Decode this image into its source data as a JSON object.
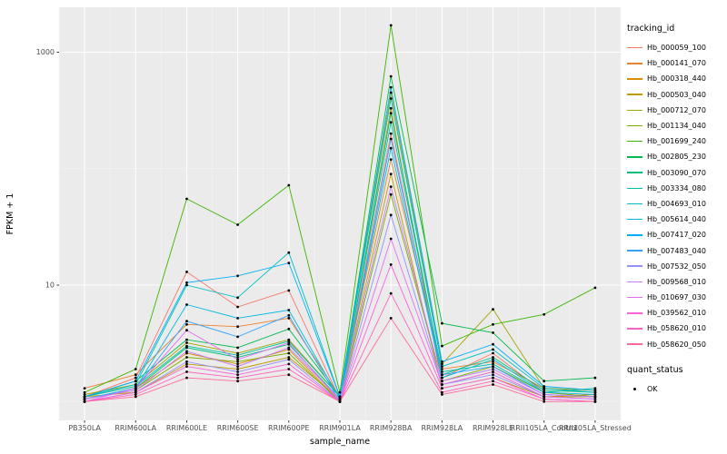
{
  "chart_data": {
    "type": "line",
    "title": "",
    "xlabel": "sample_name",
    "ylabel": "FPKM + 1",
    "y_scale": "log10",
    "y_ticks": [
      10,
      1000
    ],
    "y_minor_ticks": [
      1,
      100
    ],
    "ylim": [
      0.65,
      2400
    ],
    "panel_bg": "#EBEBEB",
    "grid_major_color": "#FFFFFF",
    "grid_minor_color": "#F5F5F5",
    "point_color": "#000000",
    "legend_title": "tracking_id",
    "quant_legend_title": "quant_status",
    "quant_legend_items": [
      {
        "label": "OK",
        "shape": "point",
        "color": "#000000"
      }
    ],
    "categories": [
      "PB350LA",
      "RRIM600LA",
      "RRIM600LE",
      "RRIM600SE",
      "RRIM600PE",
      "RRIM901LA",
      "RRIM928BA",
      "RRIM928LA",
      "RRIM928LE",
      "RRII105LA_Control",
      "RRII105LA_Stressed"
    ],
    "series": [
      {
        "name": "Hb_000059_100",
        "color": "#F8766D",
        "values": [
          1.1,
          1.6,
          13,
          6.5,
          9,
          1.05,
          200,
          1.6,
          2.6,
          1.2,
          1.1
        ]
      },
      {
        "name": "Hb_000141_070",
        "color": "#EA8331",
        "values": [
          1.3,
          1.7,
          4.6,
          4.4,
          5.2,
          1.1,
          120,
          1.9,
          2.2,
          1.3,
          1.2
        ]
      },
      {
        "name": "Hb_000318_440",
        "color": "#D89000",
        "values": [
          1.05,
          1.3,
          2.6,
          2.1,
          2.8,
          1.0,
          330,
          1.4,
          1.8,
          1.1,
          1.15
        ]
      },
      {
        "name": "Hb_000503_040",
        "color": "#C09B00",
        "values": [
          1.1,
          1.2,
          2.1,
          1.9,
          2.4,
          1.05,
          90,
          1.3,
          1.6,
          1.1,
          1.1
        ]
      },
      {
        "name": "Hb_000712_070",
        "color": "#A3A500",
        "values": [
          1.15,
          1.4,
          3.2,
          2.6,
          3.4,
          1.1,
          450,
          2.1,
          6.2,
          1.3,
          1.25
        ]
      },
      {
        "name": "Hb_001134_040",
        "color": "#7CAE00",
        "values": [
          1.05,
          1.25,
          2.4,
          2.2,
          2.6,
          1.0,
          60,
          1.5,
          2.0,
          1.2,
          1.1
        ]
      },
      {
        "name": "Hb_001699_240",
        "color": "#39B600",
        "values": [
          1.2,
          1.9,
          55,
          33,
          72,
          1.2,
          1700,
          3.0,
          4.6,
          5.6,
          9.5
        ]
      },
      {
        "name": "Hb_002805_230",
        "color": "#00BB4E",
        "values": [
          1.1,
          1.5,
          3.4,
          2.9,
          4.2,
          1.1,
          620,
          4.7,
          3.9,
          1.5,
          1.6
        ]
      },
      {
        "name": "Hb_003090_070",
        "color": "#00BF7D",
        "values": [
          1.05,
          1.3,
          2.9,
          2.4,
          3.1,
          1.05,
          300,
          1.7,
          2.4,
          1.25,
          1.2
        ]
      },
      {
        "name": "Hb_003334_080",
        "color": "#00C1A3",
        "values": [
          1.1,
          1.35,
          3.0,
          2.5,
          3.3,
          1.1,
          250,
          1.8,
          2.1,
          1.2,
          1.3
        ]
      },
      {
        "name": "Hb_004693_010",
        "color": "#00BFC4",
        "values": [
          1.1,
          1.4,
          10,
          7.8,
          19,
          1.1,
          400,
          2.0,
          2.8,
          1.3,
          1.2
        ]
      },
      {
        "name": "Hb_005614_040",
        "color": "#00BAE0",
        "values": [
          1.05,
          1.3,
          6.8,
          5.2,
          6.1,
          1.05,
          150,
          1.6,
          2.3,
          1.2,
          1.15
        ]
      },
      {
        "name": "Hb_007417_020",
        "color": "#00B0F6",
        "values": [
          1.1,
          1.5,
          10.5,
          12,
          15.5,
          1.1,
          500,
          2.2,
          3.1,
          1.35,
          1.25
        ]
      },
      {
        "name": "Hb_007483_040",
        "color": "#35A2FF",
        "values": [
          1.05,
          1.3,
          4.9,
          3.6,
          5.5,
          1.0,
          180,
          1.7,
          2.0,
          1.15,
          1.1
        ]
      },
      {
        "name": "Hb_007532_050",
        "color": "#9590FF",
        "values": [
          1.0,
          1.2,
          2.2,
          1.8,
          2.3,
          1.0,
          40,
          1.4,
          1.7,
          1.1,
          1.05
        ]
      },
      {
        "name": "Hb_009568_010",
        "color": "#C77CFF",
        "values": [
          1.05,
          1.25,
          2.7,
          2.0,
          2.9,
          1.05,
          70,
          1.5,
          1.9,
          1.15,
          1.1
        ]
      },
      {
        "name": "Hb_010697_030",
        "color": "#E76BF3",
        "values": [
          1.0,
          1.3,
          4.1,
          2.3,
          3.2,
          1.0,
          25,
          1.4,
          1.8,
          1.1,
          1.05
        ]
      },
      {
        "name": "Hb_039562_010",
        "color": "#FA62DB",
        "values": [
          1.0,
          1.2,
          2.0,
          1.7,
          2.1,
          1.0,
          15,
          1.3,
          1.6,
          1.05,
          1.0
        ]
      },
      {
        "name": "Hb_058620_010",
        "color": "#FF62BC",
        "values": [
          1.0,
          1.15,
          1.8,
          1.6,
          1.9,
          1.0,
          8.5,
          1.2,
          1.5,
          1.05,
          1.0
        ]
      },
      {
        "name": "Hb_058620_050",
        "color": "#FF6A98",
        "values": [
          1.0,
          1.1,
          1.6,
          1.5,
          1.7,
          1.0,
          5.2,
          1.15,
          1.4,
          1.0,
          1.0
        ]
      }
    ]
  }
}
